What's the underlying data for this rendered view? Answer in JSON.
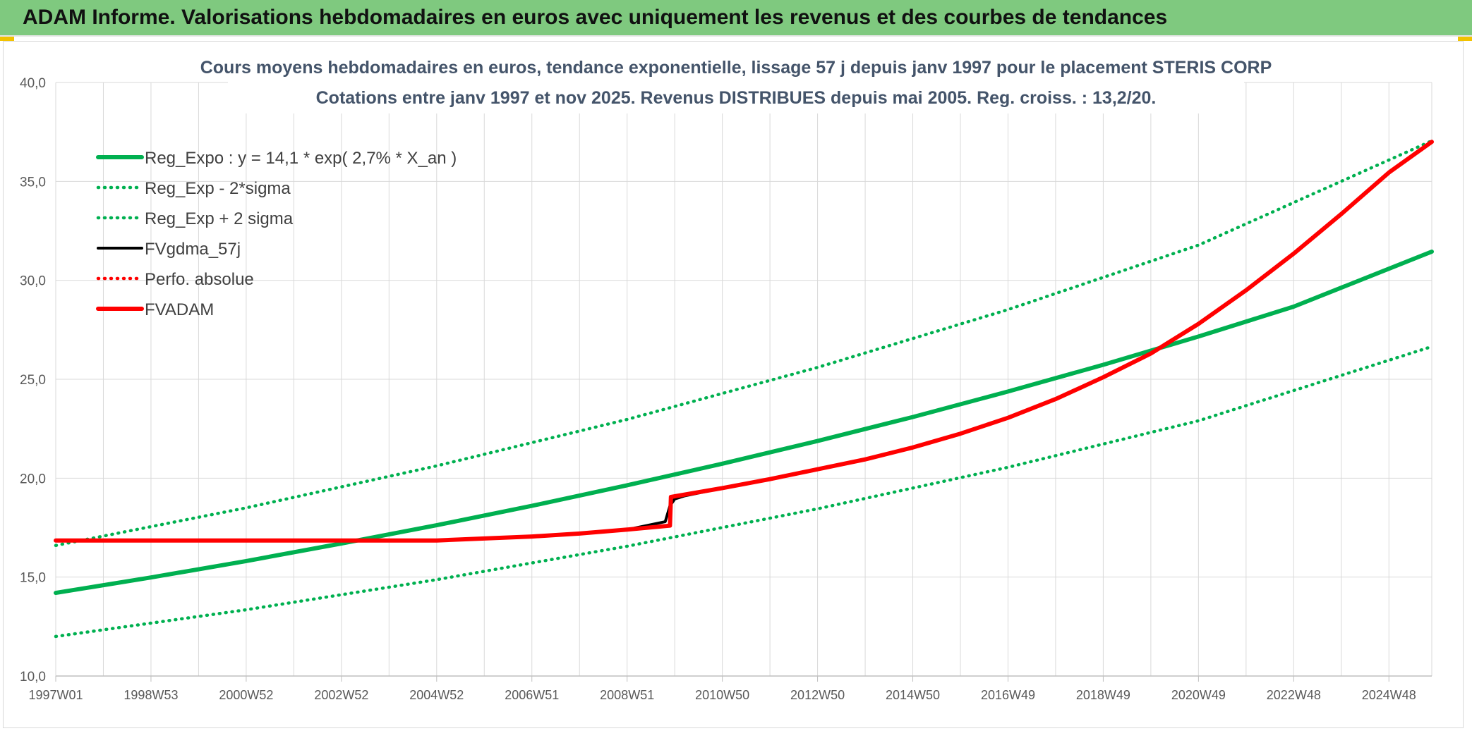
{
  "header": {
    "title": "ADAM Informe. Valorisations hebdomadaires en euros avec uniquement les revenus et des courbes de tendances"
  },
  "chart_data": {
    "type": "line",
    "title_line1": "Cours moyens hebdomadaires en euros, tendance exponentielle, lissage 57 j depuis janv 1997 pour le placement STERIS CORP",
    "title_line2": "Cotations entre janv 1997 et nov 2025. Revenus DISTRIBUES depuis mai 2005. Reg. croiss. : 13,2/20.",
    "ylim": [
      10,
      40
    ],
    "y_ticks": [
      "10,0",
      "15,0",
      "20,0",
      "25,0",
      "30,0",
      "35,0",
      "40,0"
    ],
    "x_ticks": [
      "1997W01",
      "1998W53",
      "2000W52",
      "2002W52",
      "2004W52",
      "2006W51",
      "2008W51",
      "2010W50",
      "2012W50",
      "2014W50",
      "2016W49",
      "2018W49",
      "2020W49",
      "2022W48",
      "2024W48"
    ],
    "x_range_years": [
      1997.0,
      2025.9
    ],
    "grid": true,
    "legend_position": "top-left",
    "series": [
      {
        "name": "Reg_Expo : y = 14,1 * exp( 2,7% *  X_an )",
        "style": "solid-thick",
        "color": "#00b050",
        "x": [
          1997.0,
          1999.0,
          2001.0,
          2003.0,
          2005.0,
          2007.0,
          2009.0,
          2011.0,
          2013.0,
          2015.0,
          2017.0,
          2019.0,
          2021.0,
          2023.0,
          2025.9
        ],
        "y": [
          14.2,
          14.98,
          15.81,
          16.7,
          17.62,
          18.6,
          19.64,
          20.73,
          21.88,
          23.09,
          24.38,
          25.73,
          27.16,
          28.67,
          31.45
        ]
      },
      {
        "name": "Reg_Exp - 2*sigma",
        "style": "dotted",
        "color": "#00b050",
        "x": [
          1997.0,
          2001.0,
          2005.0,
          2009.0,
          2013.0,
          2017.0,
          2021.0,
          2025.9
        ],
        "y": [
          12.0,
          13.35,
          14.87,
          16.56,
          18.45,
          20.55,
          22.9,
          26.65
        ]
      },
      {
        "name": "Reg_Exp + 2 sigma",
        "style": "dotted",
        "color": "#00b050",
        "x": [
          1997.0,
          2001.0,
          2005.0,
          2009.0,
          2013.0,
          2017.0,
          2021.0,
          2025.9
        ],
        "y": [
          16.6,
          18.5,
          20.62,
          22.97,
          25.6,
          28.52,
          31.78,
          37.05
        ]
      },
      {
        "name": "FVgdma_57j",
        "style": "solid",
        "color": "#000000",
        "x": [
          1997.0,
          2005.0,
          2006.0,
          2007.0,
          2008.0,
          2009.0,
          2009.8,
          2009.9,
          2010.0,
          2010.2,
          2011.0,
          2012.0,
          2013.0,
          2014.0,
          2015.0,
          2016.0,
          2017.0,
          2018.0,
          2019.0,
          2020.0,
          2021.0,
          2022.0,
          2023.0,
          2024.0,
          2025.0,
          2025.9
        ],
        "y": [
          16.85,
          16.85,
          16.95,
          17.05,
          17.2,
          17.4,
          17.8,
          18.6,
          18.95,
          19.1,
          19.5,
          19.95,
          20.45,
          20.95,
          21.55,
          22.25,
          23.05,
          24.0,
          25.1,
          26.3,
          27.8,
          29.5,
          31.35,
          33.35,
          35.45,
          37.0
        ]
      },
      {
        "name": "Perfo. absolue",
        "style": "dotted",
        "color": "#ff0000",
        "x": [
          1997.0,
          2005.0,
          2006.0,
          2007.0,
          2008.0,
          2009.0,
          2009.9,
          2009.92,
          2011.0,
          2012.0,
          2013.0,
          2014.0,
          2015.0,
          2016.0,
          2017.0,
          2018.0,
          2019.0,
          2020.0,
          2021.0,
          2022.0,
          2023.0,
          2024.0,
          2025.0,
          2025.9
        ],
        "y": [
          16.85,
          16.85,
          16.95,
          17.05,
          17.2,
          17.4,
          17.6,
          19.05,
          19.5,
          19.95,
          20.45,
          20.95,
          21.55,
          22.25,
          23.05,
          24.0,
          25.1,
          26.3,
          27.8,
          29.5,
          31.35,
          33.35,
          35.45,
          37.0
        ]
      },
      {
        "name": "FVADAM",
        "style": "solid-thick",
        "color": "#ff0000",
        "x": [
          1997.0,
          2005.0,
          2006.0,
          2007.0,
          2008.0,
          2009.0,
          2009.9,
          2009.92,
          2011.0,
          2012.0,
          2013.0,
          2014.0,
          2015.0,
          2016.0,
          2017.0,
          2018.0,
          2019.0,
          2020.0,
          2021.0,
          2022.0,
          2023.0,
          2024.0,
          2025.0,
          2025.9
        ],
        "y": [
          16.85,
          16.85,
          16.95,
          17.05,
          17.2,
          17.4,
          17.6,
          19.05,
          19.5,
          19.95,
          20.45,
          20.95,
          21.55,
          22.25,
          23.05,
          24.0,
          25.1,
          26.3,
          27.8,
          29.5,
          31.35,
          33.35,
          35.45,
          37.0
        ]
      }
    ]
  }
}
